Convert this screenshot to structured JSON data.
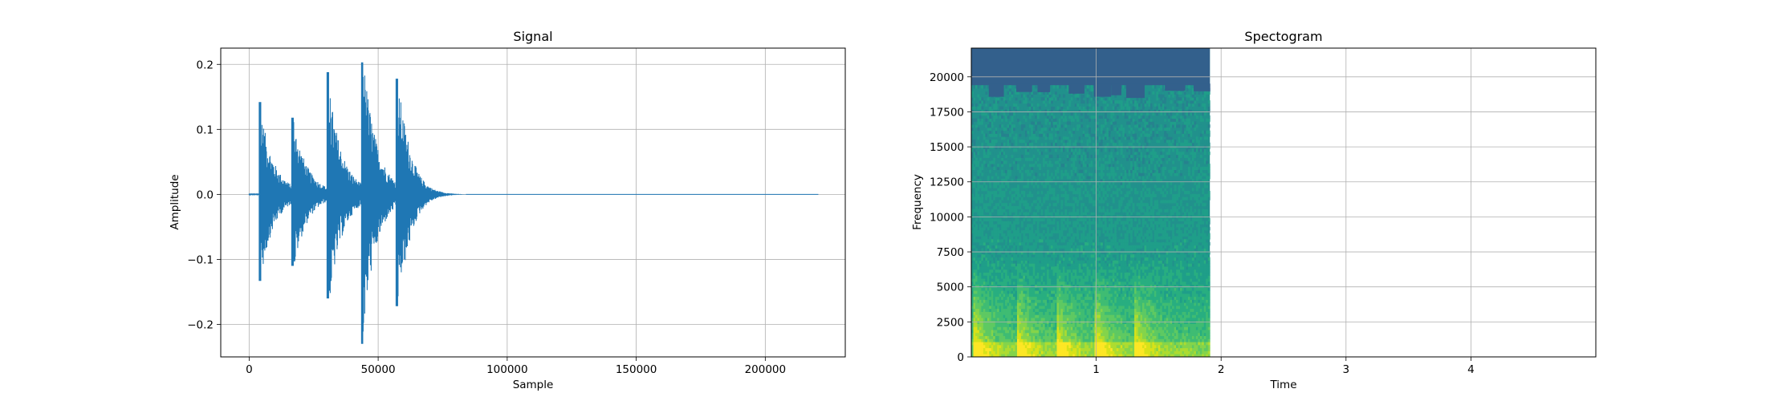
{
  "chart_data": [
    {
      "type": "line",
      "title": "Signal",
      "xlabel": "Sample",
      "ylabel": "Amplitude",
      "xlim": [
        -11000,
        231000
      ],
      "ylim": [
        -0.25,
        0.225
      ],
      "xticks": [
        0,
        50000,
        100000,
        150000,
        200000
      ],
      "xtick_labels": [
        "0",
        "50000",
        "100000",
        "150000",
        "200000"
      ],
      "yticks": [
        -0.2,
        -0.1,
        0.0,
        0.1,
        0.2
      ],
      "ytick_labels": [
        "−0.2",
        "−0.1",
        "0.0",
        "0.1",
        "0.2"
      ],
      "grid": true,
      "color": "#1f77b4",
      "sample_count": 220500,
      "onsets": [
        {
          "x": 4200,
          "max": 0.142,
          "min": -0.133
        },
        {
          "x": 16800,
          "max": 0.118,
          "min": -0.11
        },
        {
          "x": 30500,
          "max": 0.188,
          "min": -0.16
        },
        {
          "x": 43800,
          "max": 0.203,
          "min": -0.23
        },
        {
          "x": 57200,
          "max": 0.178,
          "min": -0.172
        }
      ],
      "active_end": 84000
    },
    {
      "type": "heatmap",
      "title": "Spectogram",
      "xlabel": "Time",
      "ylabel": "Frequency",
      "xlim": [
        0,
        5.0
      ],
      "ylim": [
        0,
        22050
      ],
      "xticks": [
        1,
        2,
        3,
        4
      ],
      "xtick_labels": [
        "1",
        "2",
        "3",
        "4"
      ],
      "yticks": [
        0,
        2500,
        5000,
        7500,
        10000,
        12500,
        15000,
        17500,
        20000
      ],
      "ytick_labels": [
        "0",
        "2500",
        "5000",
        "7500",
        "10000",
        "12500",
        "15000",
        "17500",
        "20000"
      ],
      "grid": true,
      "colormap": "viridis",
      "data_time_range": [
        0,
        1.91
      ],
      "onset_times": [
        0.03,
        0.37,
        0.69,
        1.0,
        1.31
      ],
      "colors": {
        "top_band": "#33608c",
        "body": "#21918c",
        "low": "#b5de2b",
        "peak": "#fde725"
      }
    }
  ]
}
